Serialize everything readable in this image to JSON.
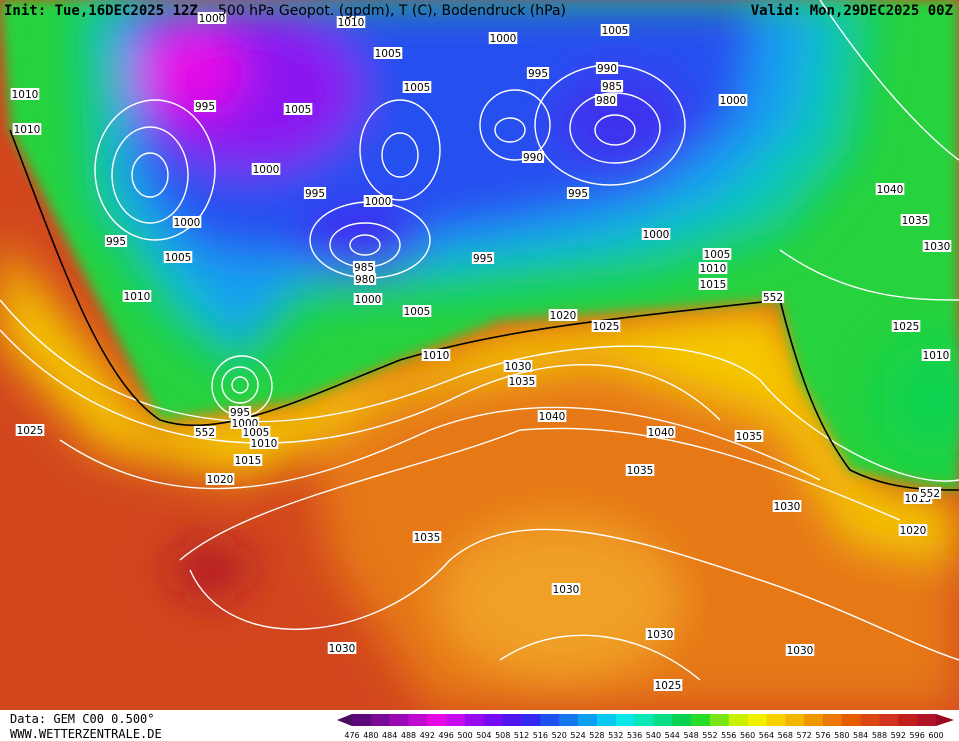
{
  "header": {
    "init": "Init: Tue,16DEC2025 12Z",
    "title": "500 hPa Geopot. (gpdm), T (C), Bodendruck (hPa)",
    "valid": "Valid: Mon,29DEC2025 00Z"
  },
  "footer": {
    "data": "Data: GEM C00 0.500°",
    "site": "WWW.WETTERZENTRALE.DE"
  },
  "legend": {
    "ticks": [
      476,
      480,
      484,
      488,
      492,
      496,
      500,
      504,
      508,
      512,
      516,
      520,
      524,
      528,
      532,
      536,
      540,
      544,
      548,
      552,
      556,
      560,
      564,
      568,
      572,
      576,
      580,
      584,
      588,
      592,
      596,
      600
    ],
    "colors": [
      "#4a0a5e",
      "#5c0a78",
      "#7a0a96",
      "#9a0ab4",
      "#c00ad2",
      "#e60ae6",
      "#c80af0",
      "#9a0af0",
      "#780af5",
      "#5014f0",
      "#3228f0",
      "#1e50f0",
      "#1478f0",
      "#0aa0f0",
      "#0ac8f0",
      "#0ae6e6",
      "#0ae6b4",
      "#0adc82",
      "#0ad250",
      "#28dc28",
      "#78e614",
      "#c8f000",
      "#f0f000",
      "#f5d200",
      "#f5b400",
      "#f09600",
      "#eb7800",
      "#e65a00",
      "#dc4614",
      "#d2321e",
      "#c31e1e",
      "#af1428",
      "#960a1e"
    ]
  },
  "isobar_labels": [
    "1000",
    "1010",
    "1005",
    "1000",
    "1005",
    "995",
    "990",
    "985",
    "980",
    "1000",
    "1010",
    "1010",
    "995",
    "1005",
    "1005",
    "990",
    "1000",
    "995",
    "1000",
    "995",
    "1040",
    "1035",
    "1030",
    "1000",
    "995",
    "1005",
    "985",
    "980",
    "995",
    "1000",
    "1005",
    "1010",
    "1015",
    "1010",
    "1000",
    "1005",
    "1020",
    "1025",
    "552",
    "1025",
    "1010",
    "1010",
    "1030",
    "1035",
    "1040",
    "1040",
    "1035",
    "1025",
    "552",
    "995",
    "1000",
    "1005",
    "1010",
    "1015",
    "1035",
    "1020",
    "1015",
    "552",
    "1030",
    "1020",
    "1035",
    "1030",
    "1030",
    "1030",
    "1030",
    "1025"
  ]
}
